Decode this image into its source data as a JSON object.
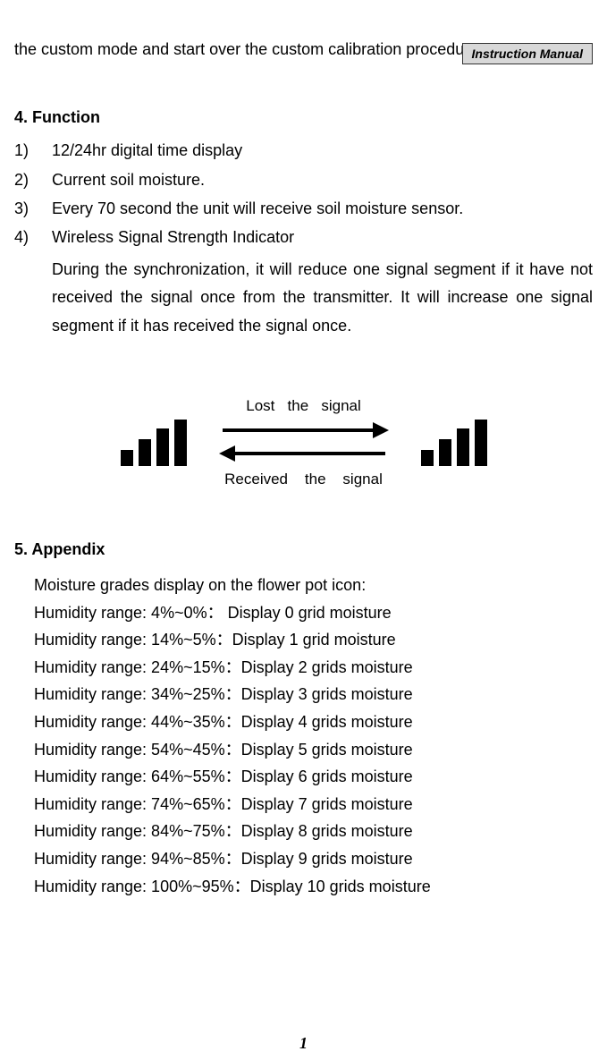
{
  "header": {
    "label": "Instruction  Manual"
  },
  "intro": "the custom mode and start over the custom calibration procedure.",
  "section4": {
    "heading": "4. Function",
    "items": [
      {
        "num": "1)",
        "text": "12/24hr digital time display"
      },
      {
        "num": "2)",
        "text": "Current soil moisture."
      },
      {
        "num": "3)",
        "text": "Every 70 second the unit will receive soil moisture sensor."
      },
      {
        "num": "4)",
        "text": "Wireless Signal Strength Indicator"
      }
    ],
    "sub4": "During the synchronization, it will reduce one signal segment if it have not received the signal once from the transmitter. It will increase one signal segment if it has received the signal once."
  },
  "diagram": {
    "lost_label": "Lost   the   signal",
    "received_label": "Received    the    signal",
    "left_bars_heights": [
      18,
      30,
      42,
      52
    ],
    "right_bars_heights": [
      18,
      30,
      42,
      52
    ],
    "bar_color": "#000000",
    "arrow_color": "#000000"
  },
  "section5": {
    "heading": "5. Appendix",
    "intro": "Moisture grades display on the flower pot icon:",
    "rows": [
      "Humidity range: 4%~0%：  Display 0 grid moisture",
      "Humidity range: 14%~5%：Display 1 grid moisture",
      "Humidity range: 24%~15%：Display 2 grids moisture",
      "Humidity range: 34%~25%：Display 3 grids moisture",
      "Humidity range: 44%~35%：Display 4 grids moisture",
      "Humidity range: 54%~45%：Display 5 grids moisture",
      "Humidity range: 64%~55%：Display 6 grids moisture",
      "Humidity range: 74%~65%：Display 7 grids moisture",
      "Humidity range: 84%~75%：Display 8 grids moisture",
      "Humidity range: 94%~85%：Display 9 grids moisture",
      "Humidity range: 100%~95%：Display 10 grids moisture"
    ]
  },
  "page_number": "1"
}
